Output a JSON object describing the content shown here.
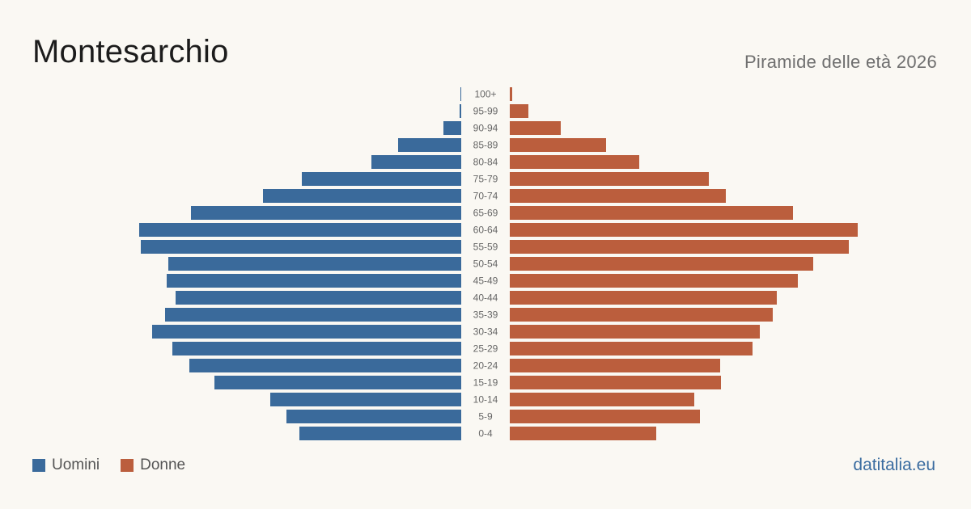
{
  "header": {
    "title": "Montesarchio",
    "subtitle": "Piramide delle età 2026"
  },
  "legend": {
    "men_label": "Uomini",
    "women_label": "Donne"
  },
  "footer": {
    "brand": "datitalia.eu"
  },
  "colors": {
    "men": "#3a6a9b",
    "women": "#bb5e3d"
  },
  "chart_data": {
    "type": "bar",
    "orientation": "horizontal-pyramid",
    "categories": [
      "100+",
      "95-99",
      "90-94",
      "85-89",
      "80-84",
      "75-79",
      "70-74",
      "65-69",
      "60-64",
      "55-59",
      "50-54",
      "45-49",
      "40-44",
      "35-39",
      "30-34",
      "25-29",
      "20-24",
      "15-19",
      "10-14",
      "5-9",
      "0-4"
    ],
    "series": [
      {
        "name": "Uomini",
        "values": [
          1,
          2,
          22,
          78,
          111,
          197,
          245,
          334,
          398,
          396,
          362,
          364,
          353,
          366,
          382,
          357,
          336,
          305,
          236,
          216,
          200
        ]
      },
      {
        "name": "Donne",
        "values": [
          3,
          23,
          63,
          119,
          160,
          246,
          267,
          350,
          430,
          419,
          375,
          356,
          330,
          325,
          309,
          300,
          260,
          261,
          228,
          235,
          181
        ]
      }
    ],
    "grid": false,
    "legend_position": "bottom-left"
  }
}
